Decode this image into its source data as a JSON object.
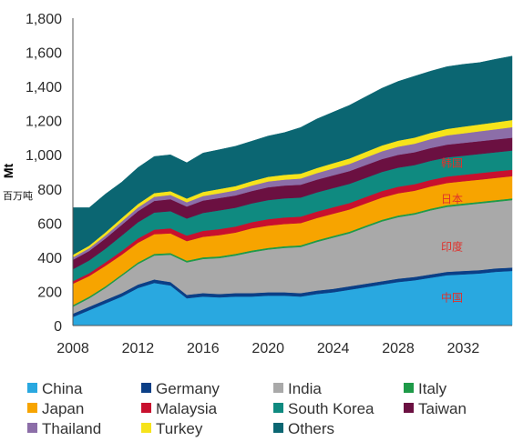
{
  "chart_data": {
    "type": "area",
    "stacked": true,
    "xlabel": "",
    "ylabel": "Mt",
    "ylabel_secondary": "百万吨",
    "xlim": [
      2008,
      2035
    ],
    "ylim": [
      0,
      1800
    ],
    "x_ticks": [
      2008,
      2012,
      2016,
      2020,
      2024,
      2028,
      2032
    ],
    "y_ticks": [
      "0",
      "200",
      "400",
      "600",
      "800",
      "1,000",
      "1,200",
      "1,400",
      "1,600",
      "1,800"
    ],
    "grid": false,
    "legend_position": "bottom",
    "x": [
      2008,
      2009,
      2010,
      2011,
      2012,
      2013,
      2014,
      2015,
      2016,
      2017,
      2018,
      2019,
      2020,
      2021,
      2022,
      2023,
      2024,
      2025,
      2026,
      2027,
      2028,
      2029,
      2030,
      2031,
      2032,
      2033,
      2034,
      2035
    ],
    "series": [
      {
        "name": "China",
        "color": "#29a8e0",
        "values": [
          50,
          90,
          130,
          170,
          220,
          250,
          235,
          160,
          170,
          165,
          170,
          170,
          175,
          175,
          170,
          185,
          195,
          210,
          225,
          240,
          255,
          265,
          280,
          295,
          300,
          305,
          315,
          320
        ]
      },
      {
        "name": "Germany",
        "color": "#0b3f86",
        "values": [
          20,
          20,
          20,
          20,
          20,
          20,
          20,
          20,
          20,
          20,
          20,
          20,
          20,
          20,
          20,
          20,
          20,
          20,
          20,
          20,
          20,
          20,
          20,
          20,
          20,
          20,
          20,
          20
        ]
      },
      {
        "name": "India",
        "color": "#a9a9a9",
        "values": [
          40,
          50,
          70,
          100,
          120,
          140,
          160,
          190,
          200,
          210,
          220,
          240,
          250,
          260,
          270,
          285,
          300,
          310,
          330,
          350,
          360,
          365,
          375,
          380,
          385,
          390,
          390,
          395
        ]
      },
      {
        "name": "Italy",
        "color": "#1e9a48",
        "values": [
          10,
          10,
          10,
          10,
          10,
          10,
          10,
          10,
          10,
          10,
          10,
          10,
          10,
          10,
          10,
          10,
          10,
          10,
          10,
          10,
          10,
          10,
          10,
          10,
          10,
          10,
          10,
          10
        ]
      },
      {
        "name": "Japan",
        "color": "#f7a400",
        "values": [
          125,
          120,
          120,
          115,
          115,
          115,
          115,
          115,
          120,
          125,
          125,
          130,
          130,
          130,
          130,
          130,
          130,
          130,
          130,
          130,
          130,
          130,
          130,
          130,
          130,
          130,
          130,
          130
        ]
      },
      {
        "name": "Malaysia",
        "color": "#c8102e",
        "values": [
          15,
          17,
          20,
          22,
          25,
          27,
          30,
          32,
          35,
          35,
          35,
          36,
          38,
          38,
          38,
          38,
          38,
          38,
          38,
          38,
          38,
          38,
          38,
          38,
          38,
          38,
          38,
          38
        ]
      },
      {
        "name": "South Korea",
        "color": "#0f8a80",
        "values": [
          70,
          75,
          80,
          90,
          95,
          100,
          100,
          100,
          105,
          110,
          110,
          110,
          112,
          112,
          112,
          112,
          112,
          112,
          112,
          112,
          112,
          112,
          112,
          112,
          112,
          112,
          112,
          112
        ]
      },
      {
        "name": "Taiwan",
        "color": "#6b1041",
        "values": [
          55,
          55,
          60,
          63,
          65,
          68,
          70,
          70,
          72,
          72,
          72,
          72,
          75,
          75,
          75,
          75,
          75,
          75,
          75,
          75,
          75,
          75,
          75,
          75,
          75,
          75,
          75,
          75
        ]
      },
      {
        "name": "Thailand",
        "color": "#8c6ea8",
        "values": [
          15,
          16,
          18,
          20,
          22,
          24,
          25,
          25,
          27,
          28,
          30,
          32,
          34,
          35,
          36,
          38,
          40,
          42,
          44,
          46,
          48,
          50,
          52,
          54,
          56,
          58,
          60,
          62
        ]
      },
      {
        "name": "Turkey",
        "color": "#f6e31b",
        "values": [
          15,
          15,
          18,
          20,
          20,
          22,
          22,
          22,
          24,
          25,
          25,
          26,
          27,
          28,
          29,
          30,
          31,
          32,
          33,
          34,
          35,
          36,
          37,
          38,
          39,
          40,
          41,
          42
        ]
      },
      {
        "name": "Others",
        "color": "#0b6672",
        "values": [
          275,
          222,
          224,
          210,
          213,
          214,
          213,
          210,
          227,
          230,
          233,
          234,
          239,
          247,
          270,
          287,
          299,
          311,
          323,
          335,
          347,
          359,
          361,
          364,
          365,
          362,
          369,
          374
        ]
      }
    ],
    "annotations": [
      {
        "text": "韩国",
        "x": 2031.3,
        "y": 930,
        "style": "red"
      },
      {
        "text": "日本",
        "x": 2031.3,
        "y": 720,
        "style": "red"
      },
      {
        "text": "印度",
        "x": 2031.3,
        "y": 440,
        "style": "red"
      },
      {
        "text": "中国",
        "x": 2031.3,
        "y": 140,
        "style": "red"
      }
    ]
  }
}
